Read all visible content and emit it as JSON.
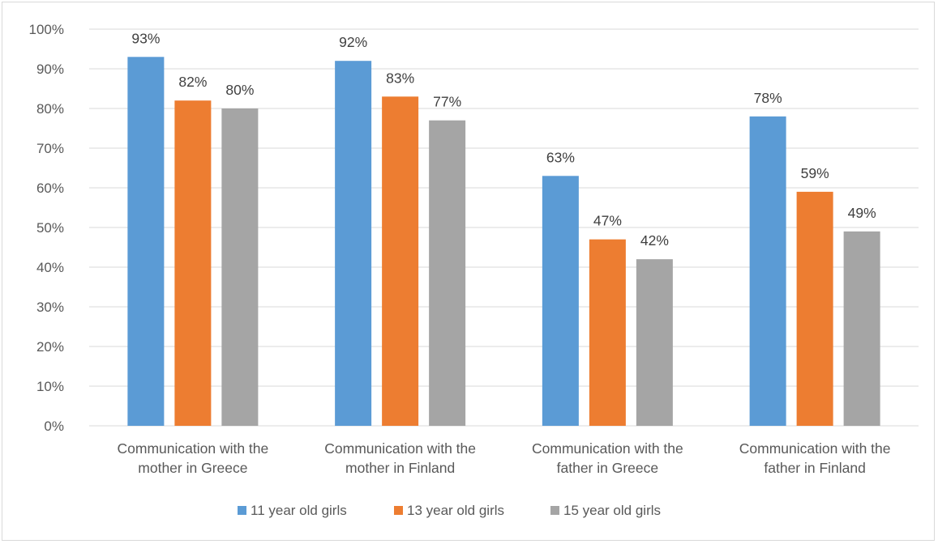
{
  "chart_data": {
    "type": "bar",
    "categories": [
      [
        "Communication with the",
        "mother in Greece"
      ],
      [
        "Communication with the",
        "mother in Finland"
      ],
      [
        "Communication with the",
        "father in Greece"
      ],
      [
        "Communication with the",
        "father in Finland"
      ]
    ],
    "series": [
      {
        "name": "11 year old girls",
        "color": "#5b9bd5",
        "values": [
          93,
          92,
          63,
          78
        ]
      },
      {
        "name": "13 year old girls",
        "color": "#ed7d31",
        "values": [
          82,
          83,
          47,
          59
        ]
      },
      {
        "name": "15 year old girls",
        "color": "#a5a5a5",
        "values": [
          80,
          77,
          42,
          49
        ]
      }
    ],
    "value_suffix": "%",
    "ylim": [
      0,
      100
    ],
    "yticks": [
      "0%",
      "10%",
      "20%",
      "30%",
      "40%",
      "50%",
      "60%",
      "70%",
      "80%",
      "90%",
      "100%"
    ],
    "grid": true,
    "legend_position": "bottom",
    "title": "",
    "xlabel": "",
    "ylabel": ""
  }
}
